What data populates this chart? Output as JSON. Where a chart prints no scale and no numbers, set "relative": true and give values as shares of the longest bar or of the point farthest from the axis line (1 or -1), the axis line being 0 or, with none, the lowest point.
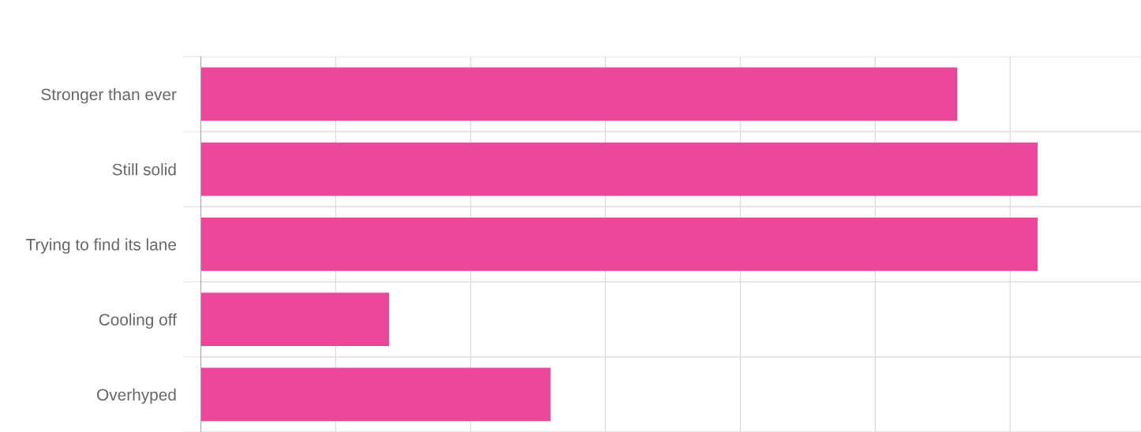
{
  "chart_data": {
    "type": "bar",
    "orientation": "horizontal",
    "relative": true,
    "categories": [
      "Stronger than ever",
      "Still solid",
      "Trying to find its lane",
      "Cooling off",
      "Overhyped"
    ],
    "values": [
      0.904,
      1,
      1,
      0.225,
      0.418
    ],
    "color": "#ec4899",
    "grid": true,
    "legend": false
  }
}
